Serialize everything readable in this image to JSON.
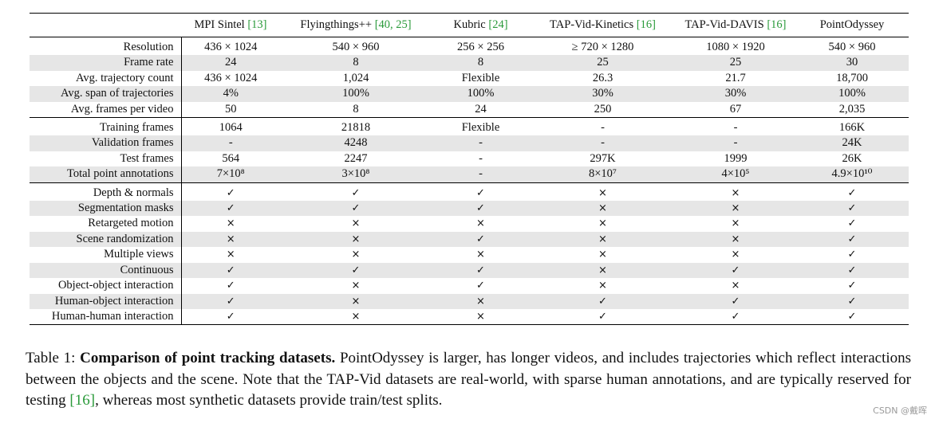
{
  "table": {
    "columns": [
      {
        "name": "MPI Sintel",
        "ref": "[13]"
      },
      {
        "name": "Flyingthings++",
        "ref": "[40, 25]"
      },
      {
        "name": "Kubric",
        "ref": "[24]"
      },
      {
        "name": "TAP-Vid-Kinetics",
        "ref": "[16]"
      },
      {
        "name": "TAP-Vid-DAVIS",
        "ref": "[16]"
      },
      {
        "name": "PointOdyssey",
        "ref": ""
      }
    ],
    "groups": [
      {
        "rows": [
          {
            "label": "Resolution",
            "values": [
              "436 × 1024",
              "540 × 960",
              "256 × 256",
              "≥ 720 × 1280",
              "1080 × 1920",
              "540 × 960"
            ]
          },
          {
            "label": "Frame rate",
            "values": [
              "24",
              "8",
              "8",
              "25",
              "25",
              "30"
            ]
          },
          {
            "label": "Avg. trajectory count",
            "values": [
              "436 × 1024",
              "1,024",
              "Flexible",
              "26.3",
              "21.7",
              "18,700"
            ]
          },
          {
            "label": "Avg. span of trajectories",
            "values": [
              "4%",
              "100%",
              "100%",
              "30%",
              "30%",
              "100%"
            ]
          },
          {
            "label": "Avg. frames per video",
            "values": [
              "50",
              "8",
              "24",
              "250",
              "67",
              "2,035"
            ]
          }
        ]
      },
      {
        "rows": [
          {
            "label": "Training frames",
            "values": [
              "1064",
              "21818",
              "Flexible",
              "-",
              "-",
              "166K"
            ]
          },
          {
            "label": "Validation frames",
            "values": [
              "-",
              "4248",
              "-",
              "-",
              "-",
              "24K"
            ]
          },
          {
            "label": "Test frames",
            "values": [
              "564",
              "2247",
              "-",
              "297K",
              "1999",
              "26K"
            ]
          },
          {
            "label": "Total point annotations",
            "values": [
              "7×10⁸",
              "3×10⁸",
              "-",
              "8×10⁷",
              "4×10⁵",
              "4.9×10¹⁰"
            ]
          }
        ]
      },
      {
        "rows": [
          {
            "label": "Depth & normals",
            "values": [
              "✓",
              "✓",
              "✓",
              "×",
              "×",
              "✓"
            ]
          },
          {
            "label": "Segmentation masks",
            "values": [
              "✓",
              "✓",
              "✓",
              "×",
              "×",
              "✓"
            ]
          },
          {
            "label": "Retargeted motion",
            "values": [
              "×",
              "×",
              "×",
              "×",
              "×",
              "✓"
            ]
          },
          {
            "label": "Scene randomization",
            "values": [
              "×",
              "×",
              "✓",
              "×",
              "×",
              "✓"
            ]
          },
          {
            "label": "Multiple views",
            "values": [
              "×",
              "×",
              "×",
              "×",
              "×",
              "✓"
            ]
          },
          {
            "label": "Continuous",
            "values": [
              "✓",
              "✓",
              "✓",
              "×",
              "✓",
              "✓"
            ]
          },
          {
            "label": "Object-object interaction",
            "values": [
              "✓",
              "×",
              "✓",
              "×",
              "×",
              "✓"
            ]
          },
          {
            "label": "Human-object interaction",
            "values": [
              "✓",
              "×",
              "×",
              "✓",
              "✓",
              "✓"
            ]
          },
          {
            "label": "Human-human interaction",
            "values": [
              "✓",
              "×",
              "×",
              "✓",
              "✓",
              "✓"
            ]
          }
        ]
      }
    ]
  },
  "caption": {
    "label": "Table 1:",
    "bold": "Comparison of point tracking datasets.",
    "text_a": "PointOdyssey is larger, has longer videos, and includes trajectories which reflect interactions between the objects and the scene.  Note that the TAP-Vid datasets are real-world, with sparse human annotations, and are typically reserved for testing",
    "ref": "[16]",
    "text_b": ", whereas most synthetic datasets provide train/test splits."
  },
  "watermark": "CSDN @戴晖"
}
